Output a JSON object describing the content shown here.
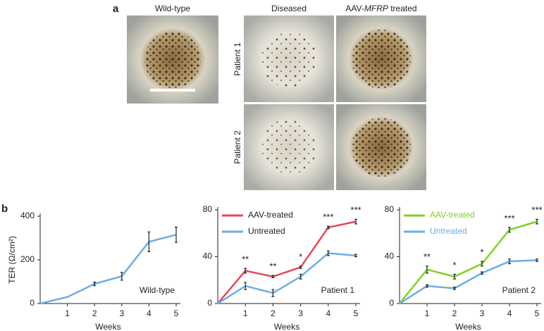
{
  "panel_a": {
    "label": "a",
    "wild_type": "Wild-type",
    "diseased": "Diseased",
    "treated": {
      "prefix": "AAV-",
      "gene": "MFRP",
      "suffix": " treated"
    },
    "patient_1": "Patient 1",
    "patient_2": "Patient 2"
  },
  "panel_b": {
    "label": "b"
  },
  "chart_data": [
    {
      "type": "line",
      "ylabel": "TER (Ω/cm²)",
      "xlabel": "Weeks",
      "annotation": "Wild-type",
      "x": [
        0,
        1,
        2,
        3,
        4,
        5
      ],
      "xlim": [
        0,
        5
      ],
      "xticks": [
        1,
        2,
        3,
        4,
        5
      ],
      "ylim": [
        0,
        400
      ],
      "yticks": [
        0,
        200,
        400
      ],
      "series": [
        {
          "color": "#6aaee6",
          "values": [
            0,
            30,
            90,
            125,
            283,
            315
          ],
          "errors": [
            0,
            0,
            8,
            18,
            45,
            35
          ]
        }
      ]
    },
    {
      "type": "line",
      "xlabel": "Weeks",
      "annotation": "Patient 1",
      "legend": "upper left",
      "legend_text_colored": false,
      "x": [
        0,
        1,
        2,
        3,
        4,
        5
      ],
      "xlim": [
        0,
        5
      ],
      "xticks": [
        1,
        2,
        3,
        4,
        5
      ],
      "ylim": [
        0,
        80
      ],
      "yticks": [
        0,
        40,
        80
      ],
      "significance": [
        null,
        "**",
        "**",
        "*",
        "***",
        "***"
      ],
      "series": [
        {
          "name": "AAV-treated",
          "color": "#e8445a",
          "values": [
            0,
            28,
            23,
            31,
            65,
            70
          ],
          "errors": [
            0,
            2,
            1,
            1,
            1,
            2
          ]
        },
        {
          "name": "Untreated",
          "color": "#6aaee6",
          "values": [
            0,
            15,
            9,
            23,
            43,
            41
          ],
          "errors": [
            0,
            3,
            3,
            2,
            2,
            1
          ]
        }
      ]
    },
    {
      "type": "line",
      "xlabel": "Weeks",
      "annotation": "Patient 2",
      "legend": "upper left",
      "legend_text_colored": true,
      "x": [
        0,
        1,
        2,
        3,
        4,
        5
      ],
      "xlim": [
        0,
        5
      ],
      "xticks": [
        1,
        2,
        3,
        4,
        5
      ],
      "ylim": [
        0,
        80
      ],
      "yticks": [
        0,
        40,
        80
      ],
      "significance": [
        null,
        "**",
        "*",
        "*",
        "***",
        "***"
      ],
      "series": [
        {
          "name": "AAV-treated",
          "color": "#7ed321",
          "values": [
            0,
            29,
            23,
            34,
            63,
            70
          ],
          "errors": [
            0,
            3,
            2,
            2,
            2,
            2
          ]
        },
        {
          "name": "Untreated",
          "color": "#6aaee6",
          "values": [
            0,
            15,
            13,
            26,
            36,
            37
          ],
          "errors": [
            0,
            1,
            1,
            1,
            2,
            1
          ]
        }
      ]
    }
  ]
}
